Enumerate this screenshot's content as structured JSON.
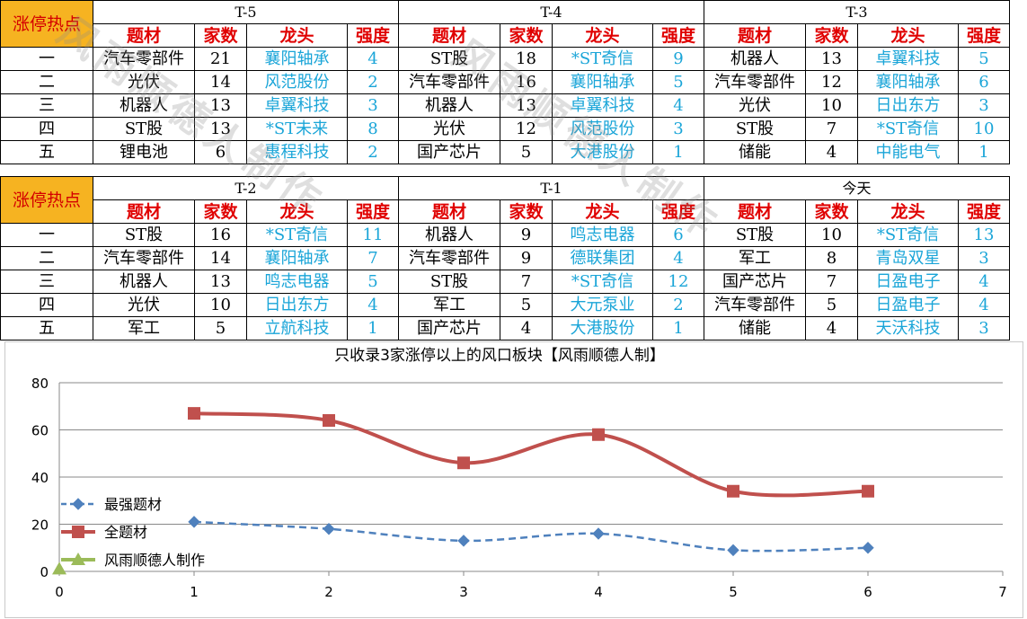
{
  "watermark": "风雨顺德人制作",
  "tables": [
    {
      "corner": "涨停热点",
      "periods": [
        "T-5",
        "T-4",
        "T-3"
      ],
      "headers": [
        "题材",
        "家数",
        "龙头",
        "强度"
      ],
      "ranks": [
        "一",
        "二",
        "三",
        "四",
        "五"
      ],
      "rows": [
        [
          [
            "汽车零部件",
            "21",
            "襄阳轴承",
            "4"
          ],
          [
            "ST股",
            "18",
            "*ST奇信",
            "9"
          ],
          [
            "机器人",
            "13",
            "卓翼科技",
            "5"
          ]
        ],
        [
          [
            "光伏",
            "14",
            "风范股份",
            "2"
          ],
          [
            "汽车零部件",
            "16",
            "襄阳轴承",
            "5"
          ],
          [
            "汽车零部件",
            "12",
            "襄阳轴承",
            "6"
          ]
        ],
        [
          [
            "机器人",
            "13",
            "卓翼科技",
            "3"
          ],
          [
            "机器人",
            "13",
            "卓翼科技",
            "4"
          ],
          [
            "光伏",
            "10",
            "日出东方",
            "3"
          ]
        ],
        [
          [
            "ST股",
            "13",
            "*ST未来",
            "8"
          ],
          [
            "光伏",
            "12",
            "风范股份",
            "3"
          ],
          [
            "ST股",
            "7",
            "*ST奇信",
            "10"
          ]
        ],
        [
          [
            "锂电池",
            "6",
            "惠程科技",
            "2"
          ],
          [
            "国产芯片",
            "5",
            "大港股份",
            "1"
          ],
          [
            "储能",
            "4",
            "中能电气",
            "1"
          ]
        ]
      ]
    },
    {
      "corner": "涨停热点",
      "periods": [
        "T-2",
        "T-1",
        "今天"
      ],
      "headers": [
        "题材",
        "家数",
        "龙头",
        "强度"
      ],
      "ranks": [
        "一",
        "二",
        "三",
        "四",
        "五"
      ],
      "rows": [
        [
          [
            "ST股",
            "16",
            "*ST奇信",
            "11"
          ],
          [
            "机器人",
            "9",
            "鸣志电器",
            "6"
          ],
          [
            "ST股",
            "10",
            "*ST奇信",
            "13"
          ]
        ],
        [
          [
            "汽车零部件",
            "14",
            "襄阳轴承",
            "7"
          ],
          [
            "汽车零部件",
            "9",
            "德联集团",
            "4"
          ],
          [
            "军工",
            "8",
            "青岛双星",
            "3"
          ]
        ],
        [
          [
            "机器人",
            "13",
            "鸣志电器",
            "5"
          ],
          [
            "ST股",
            "7",
            "*ST奇信",
            "12"
          ],
          [
            "国产芯片",
            "7",
            "日盈电子",
            "4"
          ]
        ],
        [
          [
            "光伏",
            "10",
            "日出东方",
            "4"
          ],
          [
            "军工",
            "5",
            "大元泵业",
            "2"
          ],
          [
            "汽车零部件",
            "5",
            "日盈电子",
            "4"
          ]
        ],
        [
          [
            "军工",
            "5",
            "立航科技",
            "1"
          ],
          [
            "国产芯片",
            "4",
            "大港股份",
            "1"
          ],
          [
            "储能",
            "4",
            "天沃科技",
            "3"
          ]
        ]
      ]
    }
  ],
  "chart_data": {
    "type": "line",
    "title": "只收录3家涨停以上的风口板块【风雨顺德人制】",
    "xlabel": "",
    "ylabel": "",
    "xlim": [
      0,
      7
    ],
    "ylim": [
      0,
      80
    ],
    "x_ticks": [
      "0",
      "1",
      "2",
      "3",
      "4",
      "5",
      "6",
      "7"
    ],
    "y_ticks": [
      "0",
      "20",
      "40",
      "60",
      "80"
    ],
    "grid": true,
    "legend_position": "left",
    "series": [
      {
        "name": "最强题材",
        "color": "#4f81bd",
        "marker": "diamond",
        "dashed": true,
        "x": [
          1,
          2,
          3,
          4,
          5,
          6
        ],
        "y": [
          21,
          18,
          13,
          16,
          9,
          10
        ]
      },
      {
        "name": "全题材",
        "color": "#c0504d",
        "marker": "square",
        "dashed": false,
        "x": [
          1,
          2,
          3,
          4,
          5,
          6
        ],
        "y": [
          67,
          64,
          46,
          58,
          34,
          34
        ]
      },
      {
        "name": "风雨顺德人制作",
        "color": "#9bbb59",
        "marker": "triangle",
        "dashed": false,
        "x": [
          0
        ],
        "y": [
          1
        ]
      }
    ]
  }
}
